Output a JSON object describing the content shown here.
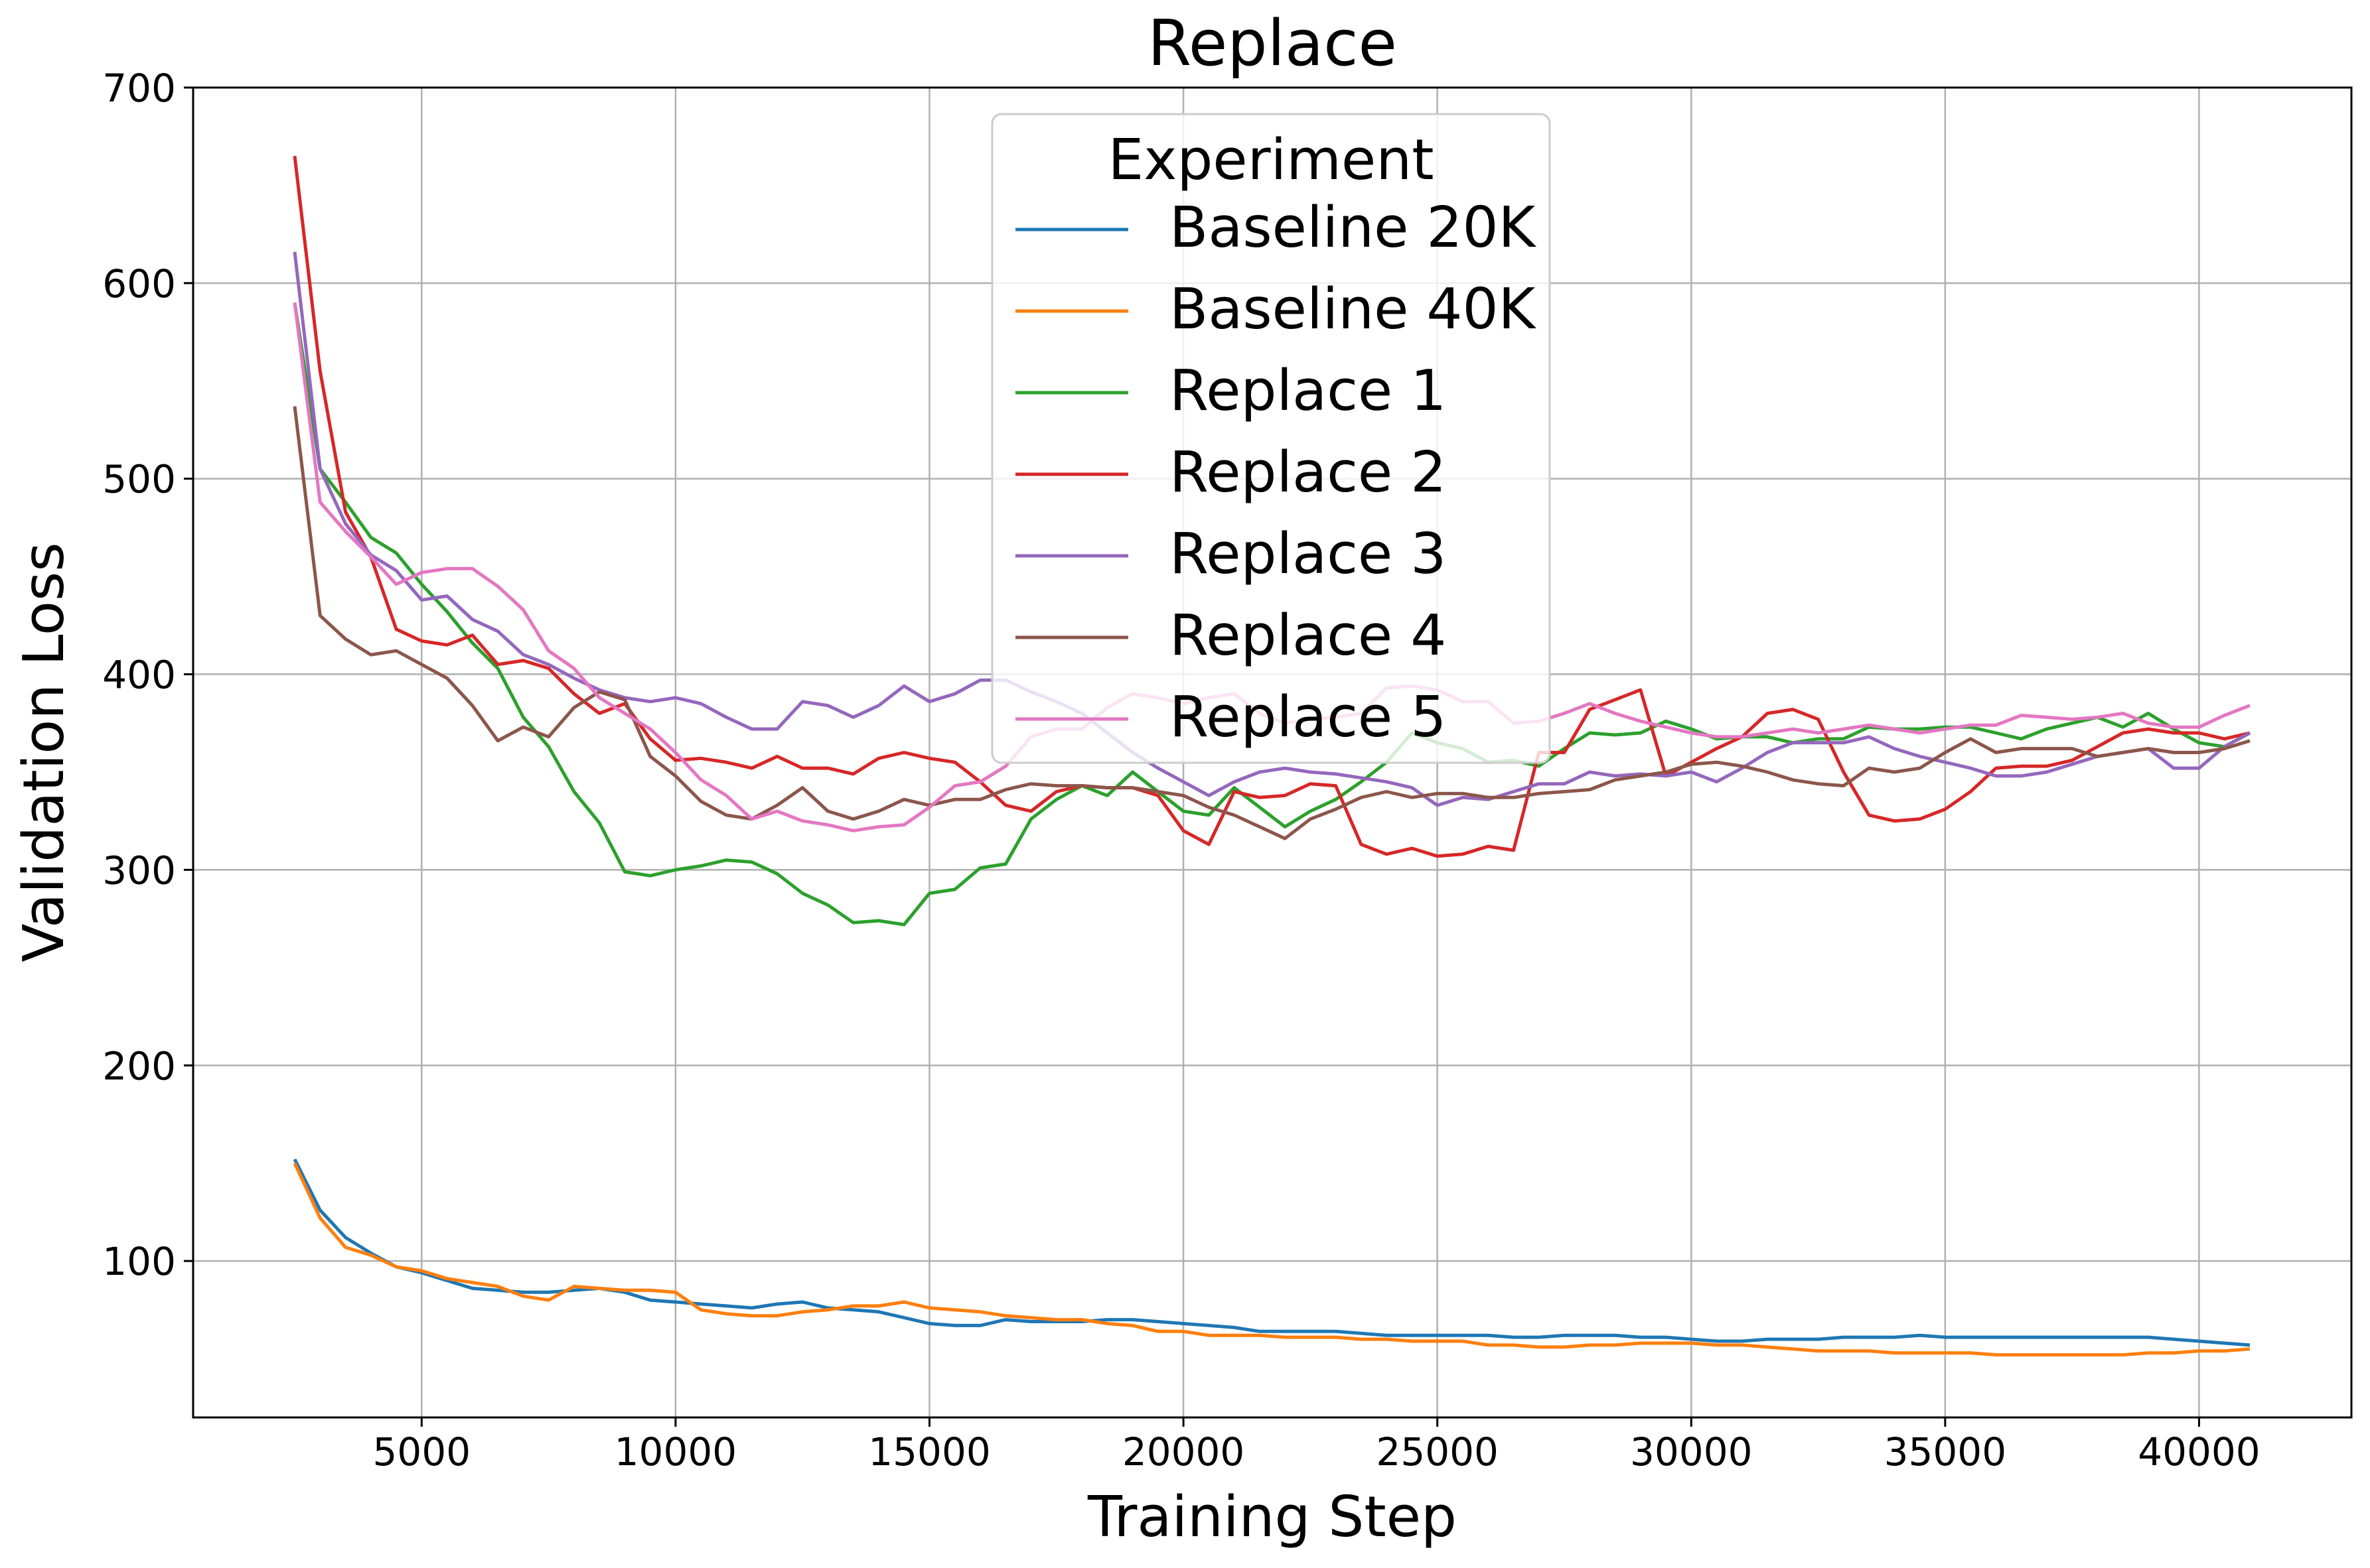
{
  "chart_data": {
    "type": "line",
    "title": "Replace",
    "xlabel": "Training Step",
    "ylabel": "Validation Loss",
    "xlim": [
      500,
      43000
    ],
    "ylim": [
      20,
      700
    ],
    "xticks": [
      5000,
      10000,
      15000,
      20000,
      25000,
      30000,
      35000,
      40000
    ],
    "yticks": [
      100,
      200,
      300,
      400,
      500,
      600,
      700
    ],
    "grid": true,
    "legend": {
      "title": "Experiment",
      "placement": "top-center"
    },
    "x": [
      2500,
      3000,
      3500,
      4000,
      4500,
      5000,
      5500,
      6000,
      6500,
      7000,
      7500,
      8000,
      8500,
      9000,
      9500,
      10000,
      10500,
      11000,
      11500,
      12000,
      12500,
      13000,
      13500,
      14000,
      14500,
      15000,
      15500,
      16000,
      16500,
      17000,
      17500,
      18000,
      18500,
      19000,
      19500,
      20000,
      20500,
      21000,
      21500,
      22000,
      22500,
      23000,
      23500,
      24000,
      24500,
      25000,
      25500,
      26000,
      26500,
      27000,
      27500,
      28000,
      28500,
      29000,
      29500,
      30000,
      30500,
      31000,
      31500,
      32000,
      32500,
      33000,
      33500,
      34000,
      34500,
      35000,
      35500,
      36000,
      36500,
      37000,
      37500,
      38000,
      38500,
      39000,
      39500,
      40000,
      40500,
      41000
    ],
    "series": [
      {
        "name": "Baseline 20K",
        "color": "#1f77b4",
        "values": [
          152,
          126,
          112,
          104,
          97,
          94,
          90,
          86,
          85,
          84,
          84,
          85,
          86,
          84,
          80,
          79,
          78,
          77,
          76,
          78,
          79,
          76,
          75,
          74,
          71,
          68,
          67,
          67,
          70,
          69,
          69,
          69,
          70,
          70,
          69,
          68,
          67,
          66,
          64,
          64,
          64,
          64,
          63,
          62,
          62,
          62,
          62,
          62,
          61,
          61,
          62,
          62,
          62,
          61,
          61,
          60,
          59,
          59,
          60,
          60,
          60,
          61,
          61,
          61,
          62,
          61,
          61,
          61,
          61,
          61,
          61,
          61,
          61,
          61,
          60,
          59,
          58,
          57
        ]
      },
      {
        "name": "Baseline 40K",
        "color": "#ff7f0e",
        "values": [
          150,
          122,
          107,
          103,
          97,
          95,
          91,
          89,
          87,
          82,
          80,
          87,
          86,
          85,
          85,
          84,
          75,
          73,
          72,
          72,
          74,
          75,
          77,
          77,
          79,
          76,
          75,
          74,
          72,
          71,
          70,
          70,
          68,
          67,
          64,
          64,
          62,
          62,
          62,
          61,
          61,
          61,
          60,
          60,
          59,
          59,
          59,
          57,
          57,
          56,
          56,
          57,
          57,
          58,
          58,
          58,
          57,
          57,
          56,
          55,
          54,
          54,
          54,
          53,
          53,
          53,
          53,
          52,
          52,
          52,
          52,
          52,
          52,
          53,
          53,
          54,
          54,
          55
        ]
      },
      {
        "name": "Replace 1",
        "color": "#2ca02c",
        "values": [
          590,
          505,
          488,
          470,
          462,
          446,
          432,
          416,
          403,
          378,
          363,
          340,
          324,
          299,
          297,
          300,
          302,
          305,
          304,
          298,
          288,
          282,
          273,
          274,
          272,
          288,
          290,
          301,
          303,
          326,
          336,
          343,
          338,
          350,
          340,
          330,
          328,
          342,
          332,
          322,
          330,
          336,
          345,
          355,
          370,
          365,
          362,
          355,
          356,
          353,
          362,
          370,
          369,
          370,
          376,
          372,
          367,
          368,
          368,
          365,
          367,
          367,
          373,
          372,
          372,
          373,
          373,
          370,
          367,
          372,
          375,
          378,
          373,
          380,
          372,
          365,
          363,
          370
        ]
      },
      {
        "name": "Replace 2",
        "color": "#d62728",
        "values": [
          665,
          555,
          483,
          460,
          423,
          417,
          415,
          420,
          405,
          407,
          403,
          390,
          380,
          385,
          367,
          356,
          357,
          355,
          352,
          358,
          352,
          352,
          349,
          357,
          360,
          357,
          355,
          345,
          333,
          330,
          340,
          343,
          342,
          342,
          338,
          320,
          313,
          340,
          337,
          338,
          344,
          343,
          313,
          308,
          311,
          307,
          308,
          312,
          310,
          360,
          360,
          382,
          387,
          392,
          348,
          355,
          362,
          368,
          380,
          382,
          377,
          350,
          328,
          325,
          326,
          331,
          340,
          352,
          353,
          353,
          356,
          363,
          370,
          372,
          370,
          370,
          367,
          370
        ]
      },
      {
        "name": "Replace 3",
        "color": "#9467bd",
        "values": [
          616,
          505,
          477,
          461,
          453,
          438,
          440,
          428,
          422,
          410,
          405,
          398,
          392,
          388,
          386,
          388,
          385,
          378,
          372,
          372,
          386,
          384,
          378,
          384,
          394,
          386,
          390,
          397,
          397,
          391,
          386,
          380,
          370,
          360,
          352,
          345,
          338,
          345,
          350,
          352,
          350,
          349,
          347,
          345,
          342,
          333,
          337,
          336,
          340,
          344,
          344,
          350,
          348,
          349,
          348,
          350,
          345,
          352,
          360,
          365,
          365,
          365,
          368,
          362,
          358,
          355,
          352,
          348,
          348,
          350,
          354,
          358,
          360,
          362,
          352,
          352,
          363,
          370
        ]
      },
      {
        "name": "Replace 4",
        "color": "#8c564b",
        "values": [
          537,
          430,
          418,
          410,
          412,
          405,
          398,
          384,
          366,
          373,
          368,
          383,
          391,
          387,
          358,
          348,
          335,
          328,
          326,
          333,
          342,
          330,
          326,
          330,
          336,
          333,
          336,
          336,
          341,
          344,
          343,
          343,
          342,
          342,
          340,
          338,
          332,
          328,
          322,
          316,
          326,
          331,
          337,
          340,
          337,
          339,
          339,
          337,
          337,
          339,
          340,
          341,
          346,
          348,
          350,
          354,
          355,
          353,
          350,
          346,
          344,
          343,
          352,
          350,
          352,
          360,
          367,
          360,
          362,
          362,
          362,
          358,
          360,
          362,
          360,
          360,
          362,
          366
        ]
      },
      {
        "name": "Replace 5",
        "color": "#e377c2",
        "values": [
          590,
          488,
          473,
          460,
          446,
          452,
          454,
          454,
          445,
          433,
          412,
          403,
          388,
          380,
          372,
          360,
          346,
          338,
          326,
          330,
          325,
          323,
          320,
          322,
          323,
          332,
          343,
          345,
          353,
          368,
          372,
          372,
          383,
          390,
          388,
          385,
          388,
          390,
          380,
          375,
          377,
          378,
          380,
          393,
          394,
          392,
          386,
          386,
          375,
          376,
          380,
          385,
          380,
          376,
          373,
          370,
          368,
          368,
          370,
          372,
          370,
          372,
          374,
          372,
          370,
          372,
          374,
          374,
          379,
          378,
          377,
          378,
          380,
          375,
          373,
          373,
          379,
          384
        ]
      }
    ]
  }
}
